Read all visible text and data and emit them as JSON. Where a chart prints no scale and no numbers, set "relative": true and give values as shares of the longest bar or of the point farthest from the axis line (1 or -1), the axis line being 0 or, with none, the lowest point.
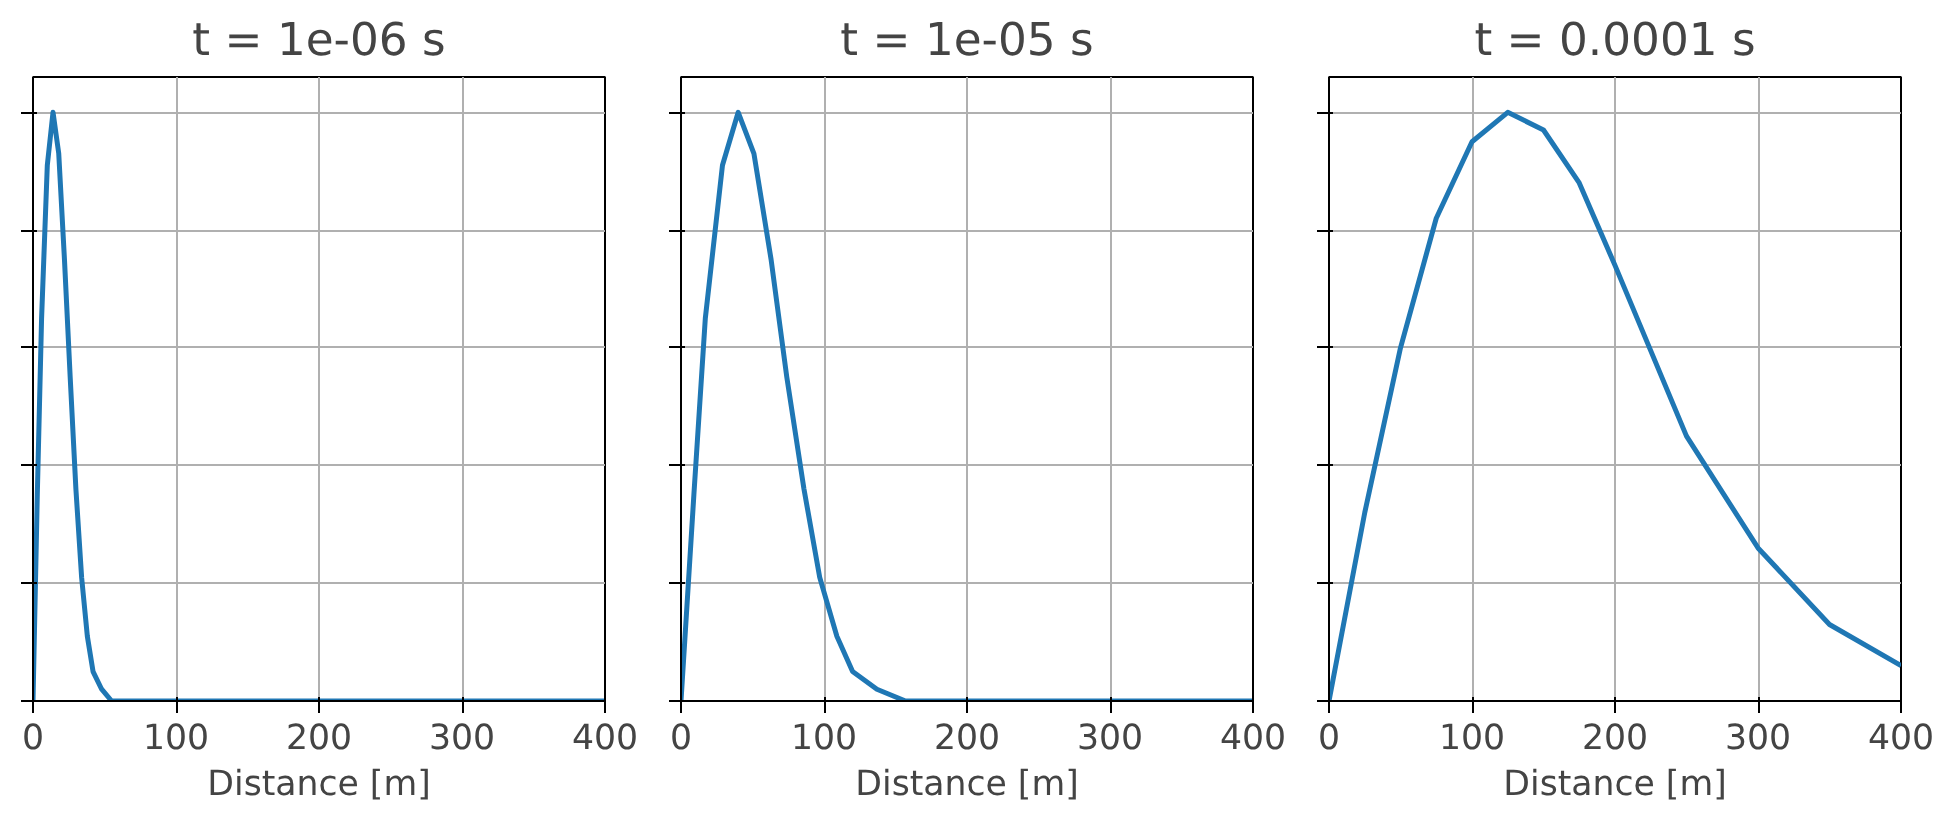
{
  "chart_data": [
    {
      "type": "line",
      "title": "t = 1e-06 s",
      "xlabel": "Distance [m]",
      "relative": true,
      "tick_labels": "x",
      "grid": true,
      "xlim": [
        0,
        400
      ],
      "xticks": [
        0,
        100,
        200,
        300,
        400
      ],
      "series": [
        {
          "color": "#1f77b4",
          "x": [
            0,
            3,
            6,
            10,
            14,
            18,
            22,
            26,
            30,
            34,
            38,
            42,
            48,
            55,
            70,
            400
          ],
          "values": [
            0,
            0.35,
            0.65,
            0.91,
            1,
            0.93,
            0.75,
            0.55,
            0.36,
            0.21,
            0.11,
            0.05,
            0.02,
            0,
            0,
            0
          ]
        }
      ]
    },
    {
      "type": "line",
      "title": "t = 1e-05 s",
      "xlabel": "Distance [m]",
      "relative": true,
      "tick_labels": "x",
      "grid": true,
      "xlim": [
        0,
        400
      ],
      "xticks": [
        0,
        100,
        200,
        300,
        400
      ],
      "series": [
        {
          "color": "#1f77b4",
          "x": [
            0,
            9,
            17,
            29,
            40,
            51,
            63,
            74,
            86,
            97,
            109,
            120,
            137,
            157,
            190,
            400
          ],
          "values": [
            0,
            0.35,
            0.65,
            0.91,
            1,
            0.93,
            0.75,
            0.55,
            0.36,
            0.21,
            0.11,
            0.05,
            0.02,
            0,
            0,
            0
          ]
        }
      ]
    },
    {
      "type": "line",
      "title": "t = 0.0001 s",
      "xlabel": "Distance [m]",
      "relative": true,
      "tick_labels": "x",
      "grid": true,
      "xlim": [
        0,
        400
      ],
      "xticks": [
        0,
        100,
        200,
        300,
        400
      ],
      "series": [
        {
          "color": "#1f77b4",
          "x": [
            0,
            25,
            50,
            75,
            100,
            125,
            150,
            175,
            200,
            250,
            300,
            350,
            400
          ],
          "values": [
            0,
            0.32,
            0.6,
            0.82,
            0.95,
            1,
            0.97,
            0.88,
            0.74,
            0.45,
            0.26,
            0.13,
            0.06
          ]
        }
      ]
    }
  ]
}
